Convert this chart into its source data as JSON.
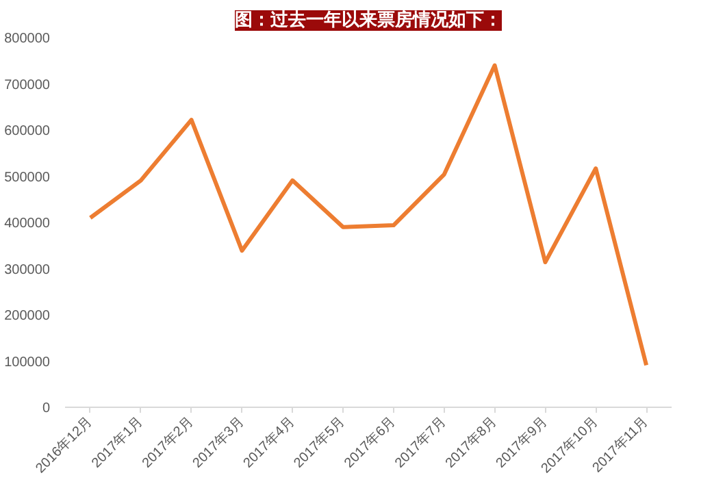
{
  "chart_data": {
    "type": "line",
    "title": "图：过去一年以来票房情况如下：",
    "categories": [
      "2016年12月",
      "2017年1月",
      "2017年2月",
      "2017年3月",
      "2017年4月",
      "2017年5月",
      "2017年6月",
      "2017年7月",
      "2017年8月",
      "2017年9月",
      "2017年10月",
      "2017年11月"
    ],
    "series": [
      {
        "color": "#ed7d31",
        "values": [
          410000,
          491000,
          622000,
          339000,
          491000,
          390000,
          394000,
          504000,
          740000,
          314000,
          517000,
          91000
        ]
      }
    ],
    "ylim": [
      0,
      800000
    ],
    "yticks": [
      0,
      100000,
      200000,
      300000,
      400000,
      500000,
      600000,
      700000,
      800000
    ],
    "grid": false,
    "marker": "none",
    "line_style": "solid"
  }
}
